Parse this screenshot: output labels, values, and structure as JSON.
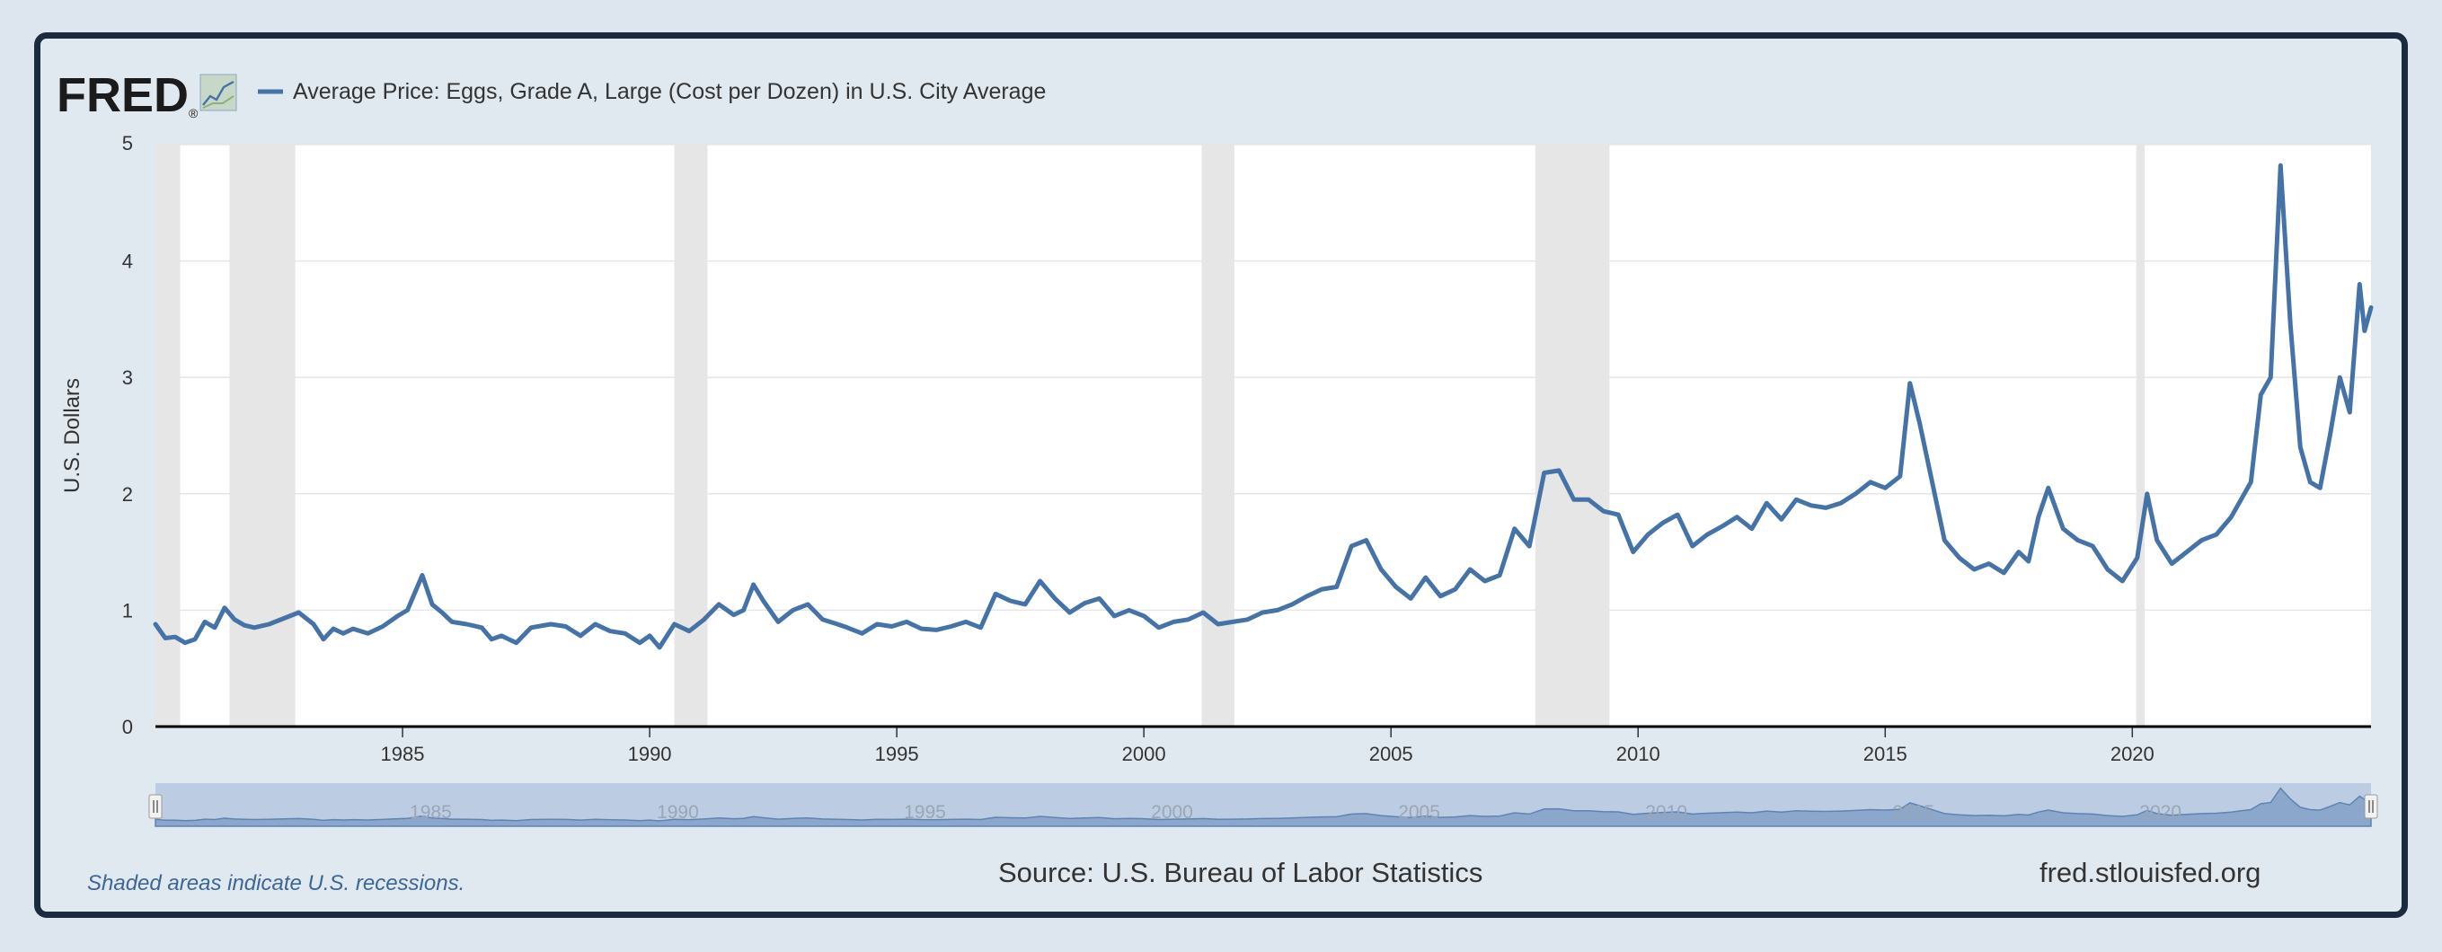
{
  "logo": {
    "text": "FRED",
    "registered": "®"
  },
  "legend": {
    "label": "Average Price: Eggs, Grade A, Large (Cost per Dozen) in U.S. City Average"
  },
  "footer": {
    "note": "Shaded areas indicate U.S. recessions.",
    "source": "Source: U.S. Bureau of Labor Statistics",
    "site": "fred.stlouisfed.org"
  },
  "colors": {
    "line": "#4572a7",
    "recession": "#e6e6e6",
    "axis": "#000000",
    "grid": "#e6e6e6",
    "frame": "#1b2b3f",
    "background": "#e1e9f0",
    "navigator_fill": "#bccde3",
    "footer_note": "#3b6696"
  },
  "icons": {
    "logo_chart": "line-chart-icon"
  },
  "chart_data": {
    "type": "line",
    "title": "",
    "xlabel": "",
    "ylabel": "U.S. Dollars",
    "xlim": [
      1980.0,
      2024.83
    ],
    "ylim": [
      0,
      5
    ],
    "yticks": [
      0,
      1,
      2,
      3,
      4,
      5
    ],
    "xticks": [
      1985,
      1990,
      1995,
      2000,
      2005,
      2010,
      2015,
      2020
    ],
    "grid": true,
    "legend_position": "top-left",
    "recessions": [
      [
        1980.0,
        1980.5
      ],
      [
        1981.5,
        1982.83
      ],
      [
        1990.5,
        1991.17
      ],
      [
        2001.17,
        2001.83
      ],
      [
        2007.92,
        2009.42
      ],
      [
        2020.08,
        2020.25
      ]
    ],
    "series": [
      {
        "name": "Average Price: Eggs, Grade A, Large (Cost per Dozen) in U.S. City Average",
        "points": [
          [
            1980.0,
            0.88
          ],
          [
            1980.2,
            0.76
          ],
          [
            1980.4,
            0.77
          ],
          [
            1980.6,
            0.72
          ],
          [
            1980.8,
            0.75
          ],
          [
            1981.0,
            0.9
          ],
          [
            1981.2,
            0.85
          ],
          [
            1981.4,
            1.02
          ],
          [
            1981.6,
            0.92
          ],
          [
            1981.8,
            0.87
          ],
          [
            1982.0,
            0.85
          ],
          [
            1982.3,
            0.88
          ],
          [
            1982.6,
            0.93
          ],
          [
            1982.9,
            0.98
          ],
          [
            1983.2,
            0.88
          ],
          [
            1983.4,
            0.75
          ],
          [
            1983.6,
            0.84
          ],
          [
            1983.8,
            0.8
          ],
          [
            1984.0,
            0.84
          ],
          [
            1984.3,
            0.8
          ],
          [
            1984.6,
            0.86
          ],
          [
            1984.9,
            0.95
          ],
          [
            1985.1,
            1.0
          ],
          [
            1985.4,
            1.3
          ],
          [
            1985.6,
            1.05
          ],
          [
            1985.8,
            0.98
          ],
          [
            1986.0,
            0.9
          ],
          [
            1986.3,
            0.88
          ],
          [
            1986.6,
            0.85
          ],
          [
            1986.8,
            0.75
          ],
          [
            1987.0,
            0.78
          ],
          [
            1987.3,
            0.72
          ],
          [
            1987.6,
            0.85
          ],
          [
            1988.0,
            0.88
          ],
          [
            1988.3,
            0.86
          ],
          [
            1988.6,
            0.78
          ],
          [
            1988.9,
            0.88
          ],
          [
            1989.2,
            0.82
          ],
          [
            1989.5,
            0.8
          ],
          [
            1989.8,
            0.72
          ],
          [
            1990.0,
            0.78
          ],
          [
            1990.2,
            0.68
          ],
          [
            1990.5,
            0.88
          ],
          [
            1990.8,
            0.82
          ],
          [
            1991.1,
            0.92
          ],
          [
            1991.4,
            1.05
          ],
          [
            1991.7,
            0.96
          ],
          [
            1991.9,
            1.0
          ],
          [
            1992.1,
            1.22
          ],
          [
            1992.3,
            1.08
          ],
          [
            1992.6,
            0.9
          ],
          [
            1992.9,
            1.0
          ],
          [
            1993.2,
            1.05
          ],
          [
            1993.5,
            0.92
          ],
          [
            1993.8,
            0.88
          ],
          [
            1994.0,
            0.85
          ],
          [
            1994.3,
            0.8
          ],
          [
            1994.6,
            0.88
          ],
          [
            1994.9,
            0.86
          ],
          [
            1995.2,
            0.9
          ],
          [
            1995.5,
            0.84
          ],
          [
            1995.8,
            0.83
          ],
          [
            1996.1,
            0.86
          ],
          [
            1996.4,
            0.9
          ],
          [
            1996.7,
            0.85
          ],
          [
            1997.0,
            1.14
          ],
          [
            1997.3,
            1.08
          ],
          [
            1997.6,
            1.05
          ],
          [
            1997.9,
            1.25
          ],
          [
            1998.2,
            1.1
          ],
          [
            1998.5,
            0.98
          ],
          [
            1998.8,
            1.06
          ],
          [
            1999.1,
            1.1
          ],
          [
            1999.4,
            0.95
          ],
          [
            1999.7,
            1.0
          ],
          [
            2000.0,
            0.95
          ],
          [
            2000.3,
            0.85
          ],
          [
            2000.6,
            0.9
          ],
          [
            2000.9,
            0.92
          ],
          [
            2001.2,
            0.98
          ],
          [
            2001.5,
            0.88
          ],
          [
            2001.8,
            0.9
          ],
          [
            2002.1,
            0.92
          ],
          [
            2002.4,
            0.98
          ],
          [
            2002.7,
            1.0
          ],
          [
            2003.0,
            1.05
          ],
          [
            2003.3,
            1.12
          ],
          [
            2003.6,
            1.18
          ],
          [
            2003.9,
            1.2
          ],
          [
            2004.2,
            1.55
          ],
          [
            2004.5,
            1.6
          ],
          [
            2004.8,
            1.35
          ],
          [
            2005.1,
            1.2
          ],
          [
            2005.4,
            1.1
          ],
          [
            2005.7,
            1.28
          ],
          [
            2006.0,
            1.12
          ],
          [
            2006.3,
            1.18
          ],
          [
            2006.6,
            1.35
          ],
          [
            2006.9,
            1.25
          ],
          [
            2007.2,
            1.3
          ],
          [
            2007.5,
            1.7
          ],
          [
            2007.8,
            1.55
          ],
          [
            2008.1,
            2.18
          ],
          [
            2008.4,
            2.2
          ],
          [
            2008.7,
            1.95
          ],
          [
            2009.0,
            1.95
          ],
          [
            2009.3,
            1.85
          ],
          [
            2009.6,
            1.82
          ],
          [
            2009.9,
            1.5
          ],
          [
            2010.2,
            1.65
          ],
          [
            2010.5,
            1.75
          ],
          [
            2010.8,
            1.82
          ],
          [
            2011.1,
            1.55
          ],
          [
            2011.4,
            1.65
          ],
          [
            2011.7,
            1.72
          ],
          [
            2012.0,
            1.8
          ],
          [
            2012.3,
            1.7
          ],
          [
            2012.6,
            1.92
          ],
          [
            2012.9,
            1.78
          ],
          [
            2013.2,
            1.95
          ],
          [
            2013.5,
            1.9
          ],
          [
            2013.8,
            1.88
          ],
          [
            2014.1,
            1.92
          ],
          [
            2014.4,
            2.0
          ],
          [
            2014.7,
            2.1
          ],
          [
            2015.0,
            2.05
          ],
          [
            2015.3,
            2.15
          ],
          [
            2015.5,
            2.95
          ],
          [
            2015.7,
            2.6
          ],
          [
            2015.9,
            2.2
          ],
          [
            2016.2,
            1.6
          ],
          [
            2016.5,
            1.45
          ],
          [
            2016.8,
            1.35
          ],
          [
            2017.1,
            1.4
          ],
          [
            2017.4,
            1.32
          ],
          [
            2017.7,
            1.5
          ],
          [
            2017.9,
            1.42
          ],
          [
            2018.1,
            1.8
          ],
          [
            2018.3,
            2.05
          ],
          [
            2018.6,
            1.7
          ],
          [
            2018.9,
            1.6
          ],
          [
            2019.2,
            1.55
          ],
          [
            2019.5,
            1.35
          ],
          [
            2019.8,
            1.25
          ],
          [
            2020.1,
            1.45
          ],
          [
            2020.3,
            2.0
          ],
          [
            2020.5,
            1.6
          ],
          [
            2020.8,
            1.4
          ],
          [
            2021.1,
            1.5
          ],
          [
            2021.4,
            1.6
          ],
          [
            2021.7,
            1.65
          ],
          [
            2022.0,
            1.8
          ],
          [
            2022.2,
            1.95
          ],
          [
            2022.4,
            2.1
          ],
          [
            2022.6,
            2.85
          ],
          [
            2022.8,
            3.0
          ],
          [
            2023.0,
            4.82
          ],
          [
            2023.2,
            3.45
          ],
          [
            2023.4,
            2.4
          ],
          [
            2023.6,
            2.1
          ],
          [
            2023.8,
            2.05
          ],
          [
            2024.0,
            2.5
          ],
          [
            2024.2,
            3.0
          ],
          [
            2024.4,
            2.7
          ],
          [
            2024.6,
            3.8
          ],
          [
            2024.7,
            3.4
          ],
          [
            2024.83,
            3.6
          ]
        ]
      }
    ]
  }
}
